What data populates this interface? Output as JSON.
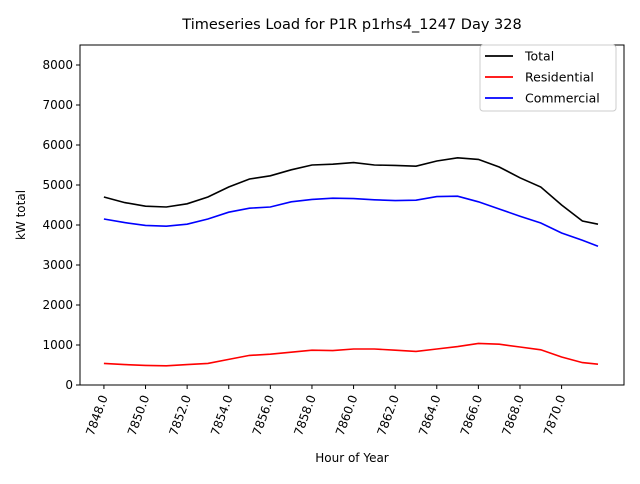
{
  "chart_data": {
    "type": "line",
    "title": "Timeseries Load for P1R p1rhs4_1247  Day 328",
    "xlabel": "Hour of Year",
    "ylabel": "kW total",
    "xlim": [
      7846.85,
      7873.0
    ],
    "ylim": [
      0,
      8500
    ],
    "xticks": [
      7848,
      7850,
      7852,
      7854,
      7856,
      7858,
      7860,
      7862,
      7864,
      7866,
      7868,
      7870
    ],
    "xtick_labels": [
      "7848.0",
      "7850.0",
      "7852.0",
      "7854.0",
      "7856.0",
      "7858.0",
      "7860.0",
      "7862.0",
      "7864.0",
      "7866.0",
      "7868.0",
      "7870.0"
    ],
    "yticks": [
      0,
      1000,
      2000,
      3000,
      4000,
      5000,
      6000,
      7000,
      8000
    ],
    "ytick_labels": [
      "0",
      "1000",
      "2000",
      "3000",
      "4000",
      "5000",
      "6000",
      "7000",
      "8000"
    ],
    "legend_position": "top-right",
    "grid": false,
    "x": [
      7848,
      7849,
      7850,
      7851,
      7852,
      7853,
      7854,
      7855,
      7856,
      7857,
      7858,
      7859,
      7860,
      7861,
      7862,
      7863,
      7864,
      7865,
      7866,
      7867,
      7868,
      7869,
      7870,
      7871,
      7871.75
    ],
    "series": [
      {
        "name": "Total",
        "color": "#000000",
        "values": [
          4700,
          4560,
          4470,
          4450,
          4530,
          4700,
          4950,
          5150,
          5230,
          5380,
          5500,
          5520,
          5560,
          5500,
          5490,
          5470,
          5600,
          5680,
          5640,
          5450,
          5180,
          4950,
          4500,
          4100,
          4020
        ]
      },
      {
        "name": "Residential",
        "color": "#ff0000",
        "values": [
          540,
          510,
          490,
          480,
          510,
          540,
          640,
          740,
          770,
          820,
          870,
          860,
          900,
          900,
          870,
          840,
          900,
          960,
          1040,
          1020,
          950,
          880,
          700,
          560,
          520
        ]
      },
      {
        "name": "Commercial",
        "color": "#0000ff",
        "values": [
          4150,
          4060,
          3990,
          3970,
          4020,
          4150,
          4320,
          4420,
          4450,
          4580,
          4640,
          4670,
          4660,
          4630,
          4610,
          4620,
          4710,
          4720,
          4580,
          4400,
          4220,
          4050,
          3800,
          3620,
          3470
        ]
      }
    ]
  }
}
